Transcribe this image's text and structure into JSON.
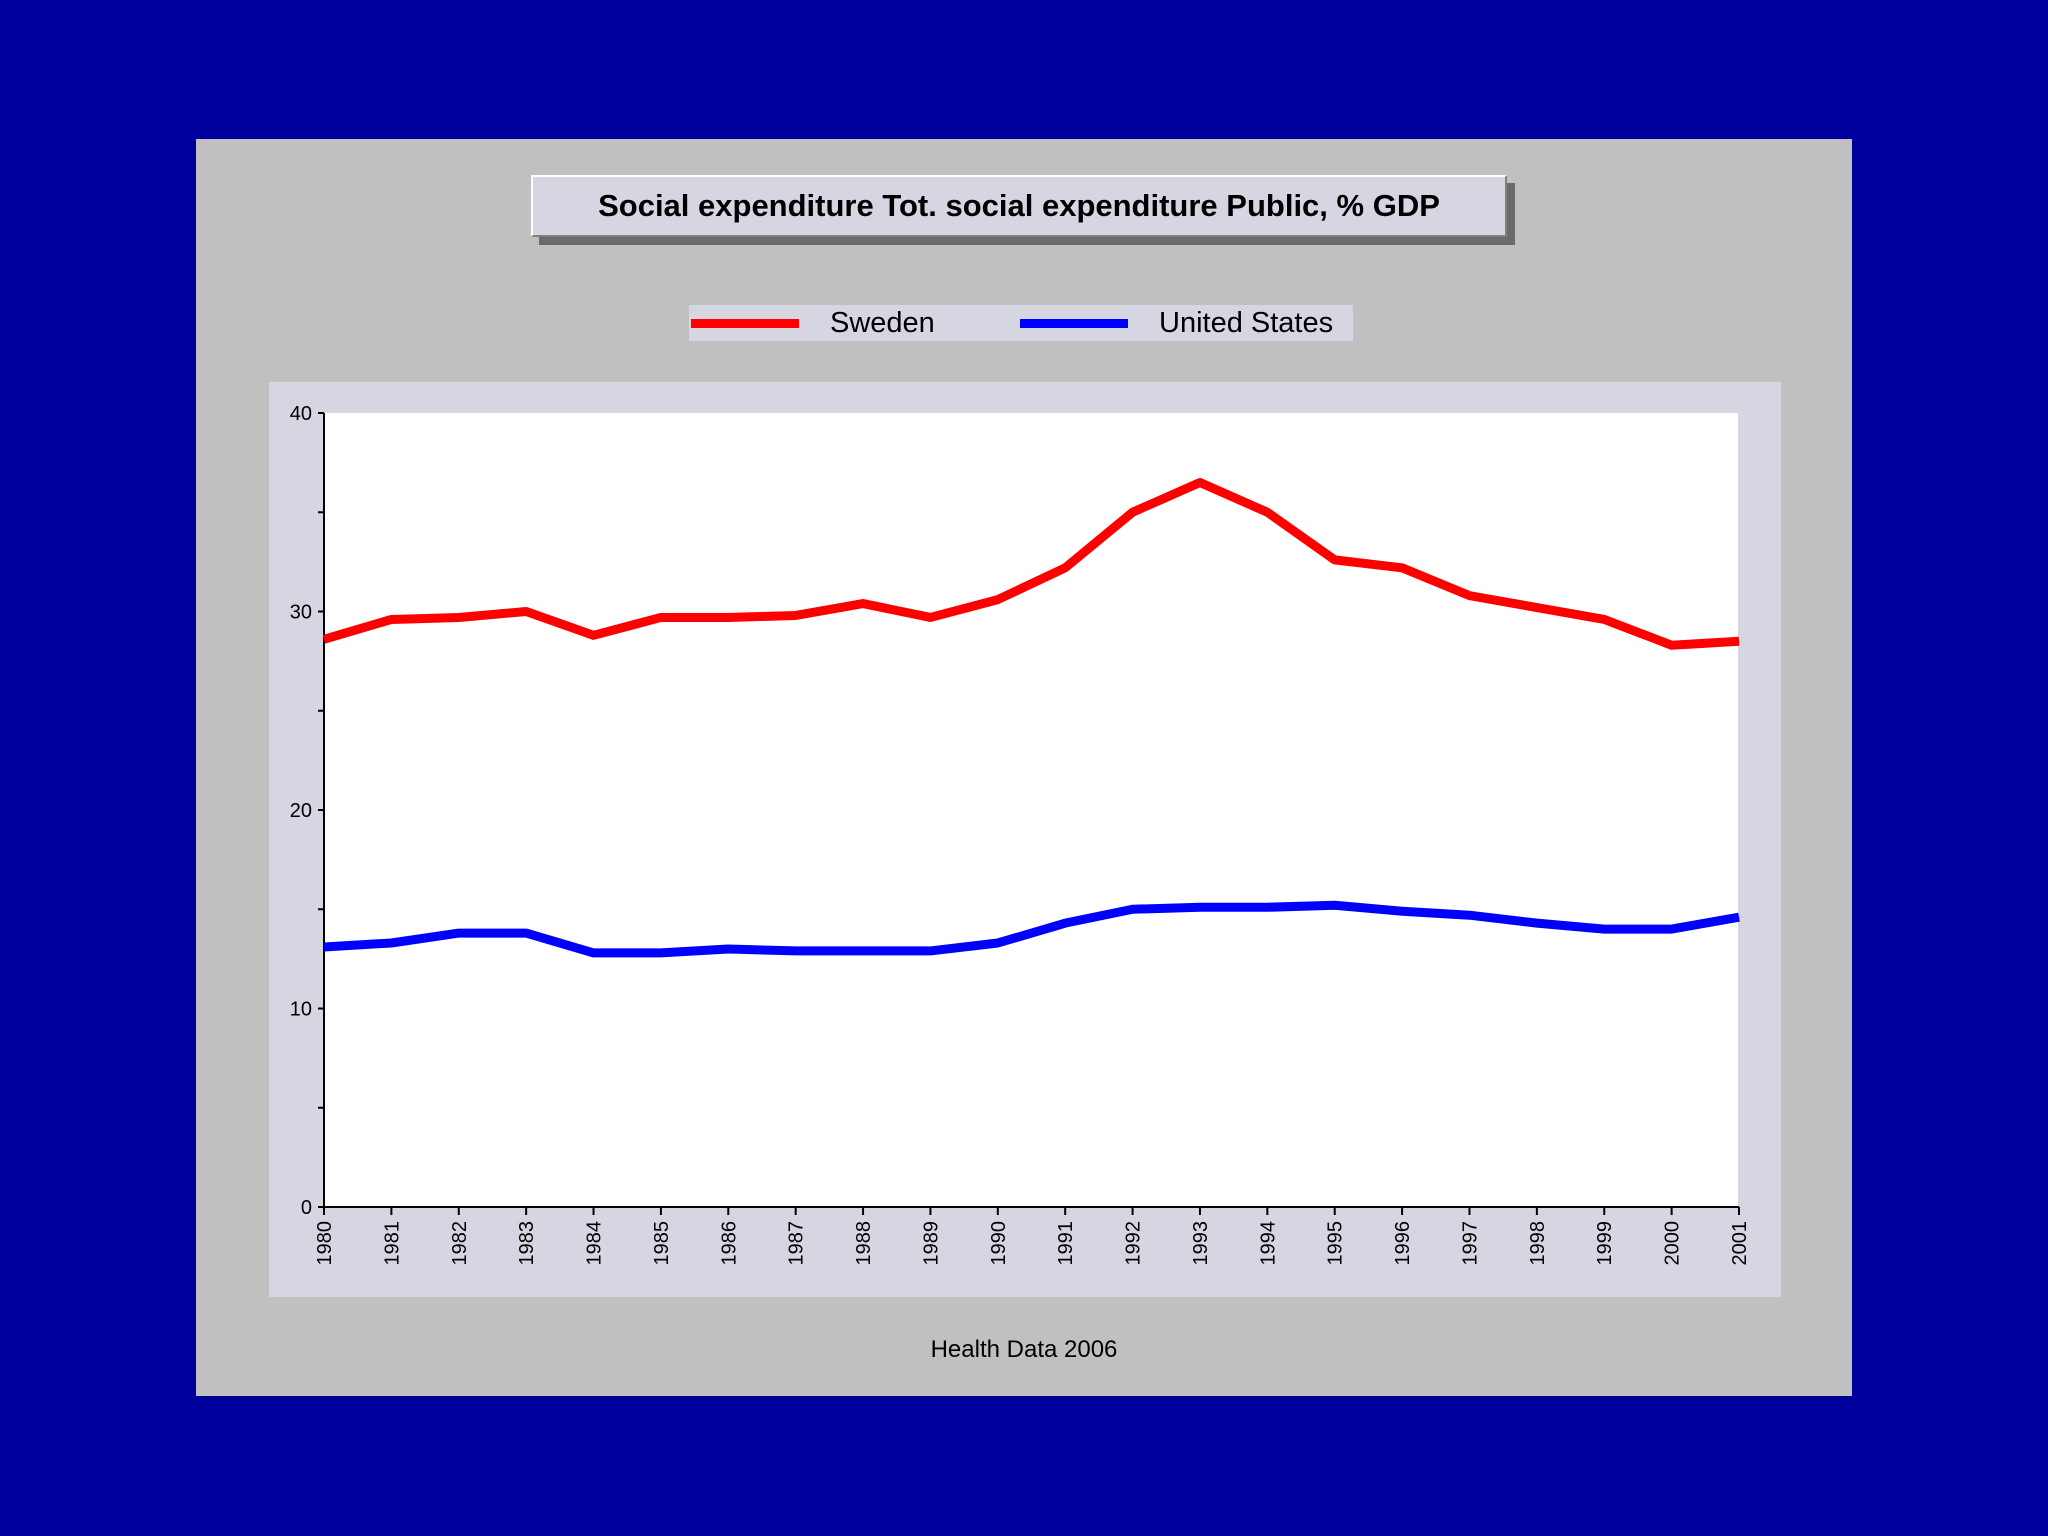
{
  "colors": {
    "background": "#00009c",
    "frame": "#c0c0c0",
    "panel": "#d6d6e2",
    "sweden": "#ff0000",
    "united_states": "#0000ff"
  },
  "footer": "Health Data 2006",
  "chart_data": {
    "type": "line",
    "title": "Social expenditure Tot. social expenditure Public, % GDP",
    "xlabel": "",
    "ylabel": "",
    "ylim": [
      0,
      40
    ],
    "yticks": [
      0,
      10,
      20,
      30,
      40
    ],
    "grid": false,
    "legend_position": "top-center",
    "categories": [
      "1980",
      "1981",
      "1982",
      "1983",
      "1984",
      "1985",
      "1986",
      "1987",
      "1988",
      "1989",
      "1990",
      "1991",
      "1992",
      "1993",
      "1994",
      "1995",
      "1996",
      "1997",
      "1998",
      "1999",
      "2000",
      "2001"
    ],
    "series": [
      {
        "name": "Sweden",
        "color": "#ff0000",
        "values": [
          28.6,
          29.6,
          29.7,
          30.0,
          28.8,
          29.7,
          29.7,
          29.8,
          30.4,
          29.7,
          30.6,
          32.2,
          35.0,
          36.5,
          35.0,
          32.6,
          32.2,
          30.8,
          30.2,
          29.6,
          28.3,
          28.5
        ]
      },
      {
        "name": "United States",
        "color": "#0000ff",
        "values": [
          13.1,
          13.3,
          13.8,
          13.8,
          12.8,
          12.8,
          13.0,
          12.9,
          12.9,
          12.9,
          13.3,
          14.3,
          15.0,
          15.1,
          15.1,
          15.2,
          14.9,
          14.7,
          14.3,
          14.0,
          14.0,
          14.6
        ]
      }
    ]
  }
}
